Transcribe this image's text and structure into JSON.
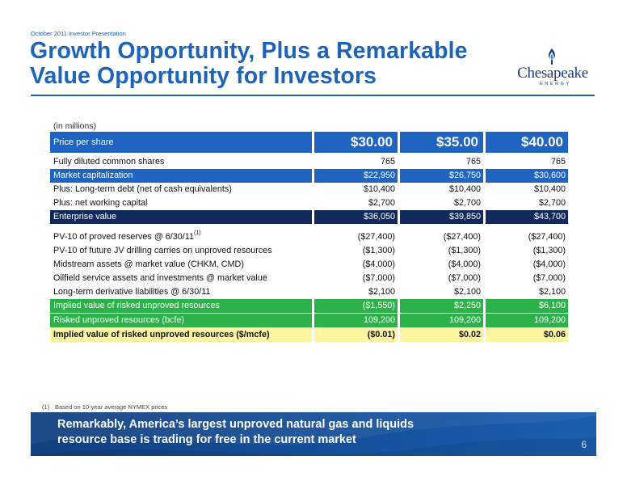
{
  "header": {
    "kicker": "October 2011 Investor Presentation",
    "title_line1": "Growth Opportunity, Plus a Remarkable",
    "title_line2": "Value Opportunity for Investors"
  },
  "logo": {
    "word": "Chesapeake",
    "sub": "ENERGY"
  },
  "table": {
    "units": "(in millions)",
    "price_row": {
      "label": "Price per share",
      "values": [
        "$30.00",
        "$35.00",
        "$40.00"
      ]
    },
    "rows_a": [
      {
        "label": "Fully diluted common shares",
        "values": [
          "765",
          "765",
          "765"
        ]
      },
      {
        "label": "Market capitalization",
        "values": [
          "$22,950",
          "$26,750",
          "$30,600"
        ]
      },
      {
        "label": "Plus: Long-term debt (net of cash equivalents)",
        "values": [
          "$10,400",
          "$10,400",
          "$10,400"
        ]
      },
      {
        "label": "Plus: net working capital",
        "values": [
          "$2,700",
          "$2,700",
          "$2,700"
        ]
      },
      {
        "label": "Enterprise value",
        "values": [
          "$36,050",
          "$39,850",
          "$43,700"
        ]
      }
    ],
    "rows_b": [
      {
        "label": "PV-10 of proved reserves @ 6/30/11",
        "footnote_mark": "(1)",
        "values": [
          "($27,400)",
          "($27,400)",
          "($27,400)"
        ]
      },
      {
        "label": "PV-10 of future JV drilling carries on unproved resources",
        "values": [
          "($1,300)",
          "($1,300)",
          "($1,300)"
        ]
      },
      {
        "label": "Midstream assets @ market value (CHKM, CMD)",
        "values": [
          "($4,000)",
          "($4,000)",
          "($4,000)"
        ]
      },
      {
        "label": "Oilfield service assets and investments @ market value",
        "values": [
          "($7,000)",
          "($7,000)",
          "($7,000)"
        ]
      },
      {
        "label": "Long-term derivative liabilities @ 6/30/11",
        "values": [
          "$2,100",
          "$2,100",
          "$2,100"
        ]
      },
      {
        "label": "Implied value of risked unproved resources",
        "values": [
          "($1,550)",
          "$2,250",
          "$6,100"
        ]
      },
      {
        "label": "Risked unproved resources (bcfe)",
        "values": [
          "109,200",
          "109,200",
          "109,200"
        ]
      },
      {
        "label": "Implied value of risked unproved resources ($/mcfe)",
        "values": [
          "($0.01)",
          "$0.02",
          "$0.06"
        ]
      }
    ]
  },
  "footnote": {
    "mark": "(1)",
    "text": "Based on 10-year average NYMEX prices"
  },
  "banner": {
    "line1": "Remarkably, America’s largest unproved natural gas and liquids",
    "line2": "resource base is trading for free in the current market",
    "page_number": "6"
  },
  "colors": {
    "title_blue": "#1d63b6",
    "row_blue": "#1e64c0",
    "row_navy": "#102a5e",
    "row_green": "#2bb34a",
    "row_yellow": "#fdf6a0",
    "banner_blue": "#15509a"
  },
  "icons": [
    "chesapeake-flame-icon"
  ]
}
